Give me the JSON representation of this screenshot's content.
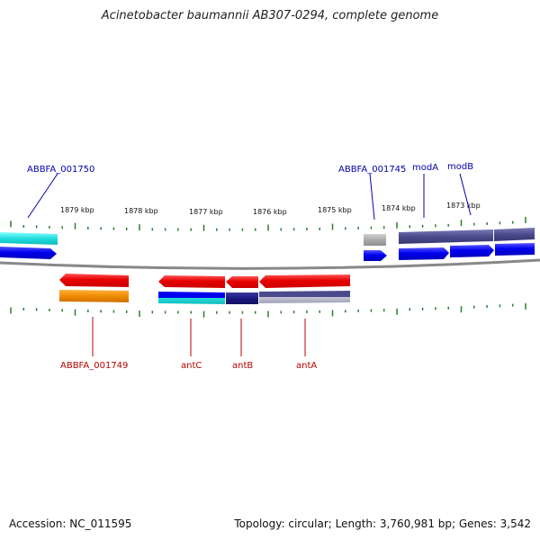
{
  "title": "Acinetobacter baumannii AB307-0294, complete genome",
  "footer": {
    "accession": "Accession: NC_011595",
    "topology": "Topology: circular; Length: 3,760,981 bp; Genes: 3,542"
  },
  "axis": {
    "tick_labels": [
      "1879 kbp",
      "1878 kbp",
      "1877 kbp",
      "1876 kbp",
      "1875 kbp",
      "1874 kbp",
      "1873 kbp"
    ]
  },
  "genes_top": [
    {
      "name": "ABBFA_001750"
    },
    {
      "name": "ABBFA_001745"
    },
    {
      "name": "modA"
    },
    {
      "name": "modB"
    }
  ],
  "genes_bottom": [
    {
      "name": "ABBFA_001749"
    },
    {
      "name": "antC"
    },
    {
      "name": "antB"
    },
    {
      "name": "antA"
    }
  ],
  "colors": {
    "backbone": "#888888",
    "tick": "#2e7d2e",
    "forward_strand": "#0000ee",
    "reverse_strand": "#e60000",
    "cyan": "#22dddd",
    "orange": "#f08c00",
    "navy": "#1a1a80",
    "slate": "#4a4a8c",
    "grey": "#aaaaaa",
    "label_top": "#0000aa",
    "label_bottom": "#bb0000"
  }
}
